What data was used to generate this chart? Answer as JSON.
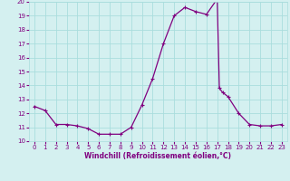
{
  "x": [
    0,
    1,
    2,
    3,
    4,
    5,
    6,
    7,
    8,
    9,
    10,
    11,
    12,
    13,
    14,
    15,
    16,
    17,
    17.2,
    17.5,
    18,
    19,
    20,
    21,
    22,
    23
  ],
  "y": [
    12.5,
    12.2,
    11.2,
    11.2,
    11.1,
    10.9,
    10.5,
    10.5,
    10.5,
    11.0,
    12.6,
    14.5,
    17.0,
    19.0,
    19.6,
    19.3,
    19.1,
    20.2,
    13.8,
    13.5,
    13.2,
    12.0,
    11.2,
    11.1,
    11.1,
    11.2
  ],
  "line_color": "#800080",
  "marker_color": "#800080",
  "bg_color": "#d4f0f0",
  "grid_color": "#aadddd",
  "xlabel": "Windchill (Refroidissement éolien,°C)",
  "xlim": [
    -0.5,
    23.5
  ],
  "ylim": [
    10,
    20
  ],
  "xticks": [
    0,
    1,
    2,
    3,
    4,
    5,
    6,
    7,
    8,
    9,
    10,
    11,
    12,
    13,
    14,
    15,
    16,
    17,
    18,
    19,
    20,
    21,
    22,
    23
  ],
  "yticks": [
    10,
    11,
    12,
    13,
    14,
    15,
    16,
    17,
    18,
    19,
    20
  ],
  "axis_fontsize": 5.5,
  "tick_fontsize": 5.0
}
